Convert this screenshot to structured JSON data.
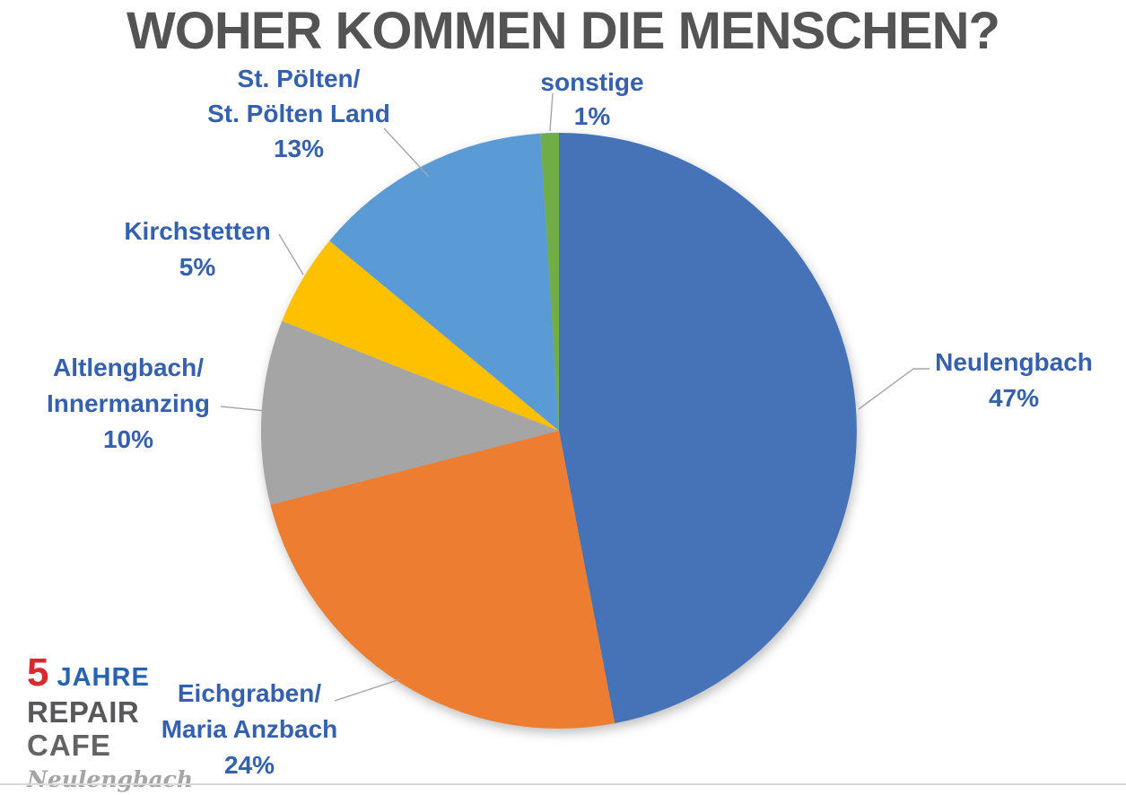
{
  "title": "WOHER KOMMEN DIE MENSCHEN?",
  "logo": {
    "number": "5",
    "jahre": "JAHRE",
    "repair": "REPAIR",
    "cafe": "CAFE",
    "place": "Neulengbach"
  },
  "chart_data": {
    "type": "pie",
    "title": "WOHER KOMMEN DIE MENSCHEN?",
    "unit": "percent",
    "start_angle_deg": 0,
    "direction": "clockwise",
    "label_text_color": "#3560AC",
    "leader_line_color": "#A6A6A6",
    "slices": [
      {
        "key": "neulengbach",
        "label_lines": [
          "Neulengbach"
        ],
        "pct_label": "47%",
        "value": 47,
        "color": "#4673B8"
      },
      {
        "key": "eichgraben",
        "label_lines": [
          "Eichgraben/",
          "Maria Anzbach"
        ],
        "pct_label": "24%",
        "value": 24,
        "color": "#ED7D31"
      },
      {
        "key": "altlengbach",
        "label_lines": [
          "Altlengbach/",
          "Innermanzing"
        ],
        "pct_label": "10%",
        "value": 10,
        "color": "#A5A5A5"
      },
      {
        "key": "kirchstetten",
        "label_lines": [
          "Kirchstetten"
        ],
        "pct_label": "5%",
        "value": 5,
        "color": "#FFC000"
      },
      {
        "key": "stpoelten",
        "label_lines": [
          "St. Pölten/",
          "St. Pölten Land"
        ],
        "pct_label": "13%",
        "value": 13,
        "color": "#5B9BD5"
      },
      {
        "key": "sonstige",
        "label_lines": [
          "sonstige"
        ],
        "pct_label": "1%",
        "value": 1,
        "color": "#70AD47"
      }
    ]
  }
}
